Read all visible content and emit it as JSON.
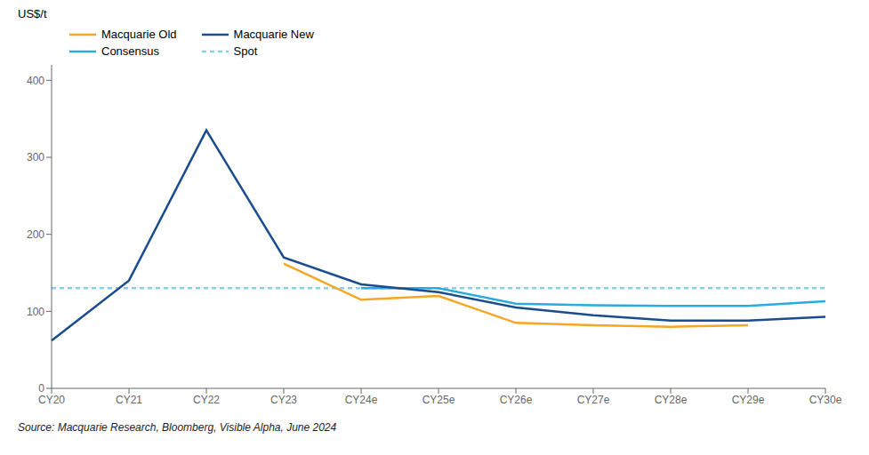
{
  "chart_data": {
    "type": "line",
    "y_label": "US$/t",
    "annotations": [
      "Source: Macquarie Research, Bloomberg, Visible Alpha, June 2024"
    ],
    "categories": [
      "CY20",
      "CY21",
      "CY22",
      "CY23",
      "CY24e",
      "CY25e",
      "CY26e",
      "CY27e",
      "CY28e",
      "CY29e",
      "CY30e"
    ],
    "series": [
      {
        "name": "Macquarie Old",
        "color": "#f5a623",
        "line_style": "solid",
        "values": [
          null,
          null,
          null,
          162,
          115,
          120,
          85,
          82,
          80,
          82,
          null
        ]
      },
      {
        "name": "Macquarie New",
        "color": "#1a4d8f",
        "line_style": "solid",
        "values": [
          62,
          140,
          335,
          170,
          135,
          125,
          105,
          95,
          88,
          88,
          93
        ]
      },
      {
        "name": "Consensus",
        "color": "#29abe2",
        "line_style": "solid",
        "values": [
          null,
          null,
          null,
          null,
          130,
          130,
          110,
          108,
          107,
          107,
          113
        ]
      },
      {
        "name": "Spot",
        "color": "#87CEEB",
        "line_style": "dashed",
        "values": [
          130,
          130,
          130,
          130,
          130,
          130,
          130,
          130,
          130,
          130,
          130
        ]
      }
    ],
    "ylim": [
      0,
      420
    ],
    "yticks": [
      0,
      100,
      200,
      300,
      400
    ],
    "grid": false,
    "legend": "upper left"
  }
}
